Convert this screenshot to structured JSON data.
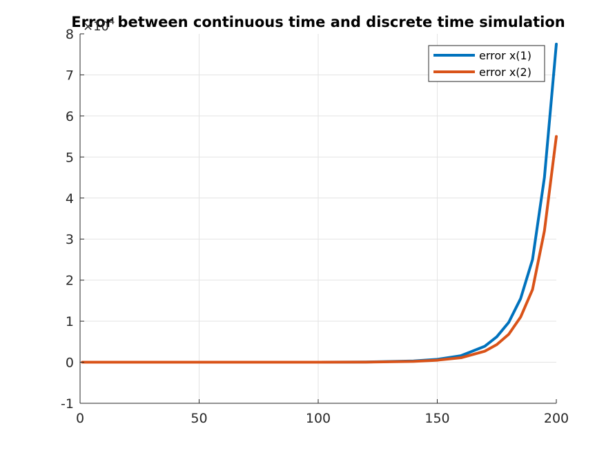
{
  "chart_data": {
    "type": "line",
    "title": "Error between continuous time and discrete time simulation",
    "xlabel": "",
    "ylabel": "",
    "y_exponent_label": "×10",
    "y_exponent_power": "4",
    "xlim": [
      0,
      200
    ],
    "ylim": [
      -1,
      8
    ],
    "xticks": [
      0,
      50,
      100,
      150,
      200
    ],
    "yticks": [
      -1,
      0,
      1,
      2,
      3,
      4,
      5,
      6,
      7,
      8
    ],
    "grid": true,
    "legend_position": "top-right",
    "series": [
      {
        "name": "error x(1)",
        "color": "#0072BD",
        "x": [
          1,
          50,
          100,
          120,
          140,
          150,
          160,
          170,
          175,
          180,
          185,
          190,
          195,
          200
        ],
        "y": [
          0,
          0,
          0,
          0.005,
          0.03,
          0.07,
          0.16,
          0.39,
          0.62,
          0.97,
          1.55,
          2.5,
          4.5,
          7.75
        ]
      },
      {
        "name": "error x(2)",
        "color": "#D95319",
        "x": [
          1,
          50,
          100,
          120,
          140,
          150,
          160,
          170,
          175,
          180,
          185,
          190,
          195,
          200
        ],
        "y": [
          0,
          0,
          0,
          0.003,
          0.02,
          0.05,
          0.11,
          0.27,
          0.43,
          0.68,
          1.1,
          1.77,
          3.2,
          5.5
        ]
      }
    ]
  }
}
